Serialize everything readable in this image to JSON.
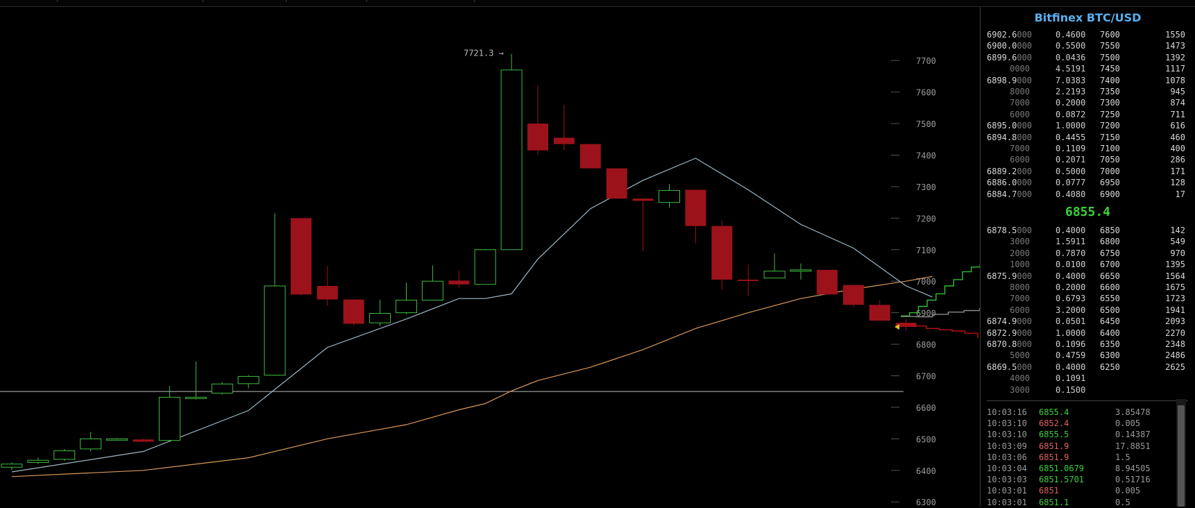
{
  "exchange_title": "Bitfinex BTC/USD",
  "chart_data": {
    "type": "candlestick",
    "y_ticks": [
      7700,
      7600,
      7500,
      7400,
      7300,
      7200,
      7100,
      7000,
      6900,
      6800,
      6700,
      6600,
      6500,
      6400,
      6300
    ],
    "ylim": [
      6285,
      7870
    ],
    "high_annotation": "7721.3 →",
    "horizontal_line_value": 6650,
    "candles": [
      {
        "o": 6410,
        "c": 6420,
        "h": 6425,
        "l": 6400,
        "bull": true
      },
      {
        "o": 6425,
        "c": 6432,
        "h": 6440,
        "l": 6420,
        "bull": true
      },
      {
        "o": 6435,
        "c": 6462,
        "h": 6468,
        "l": 6430,
        "bull": true
      },
      {
        "o": 6468,
        "c": 6500,
        "h": 6522,
        "l": 6460,
        "bull": true
      },
      {
        "o": 6500,
        "c": 6500,
        "h": 6502,
        "l": 6498,
        "bull": true
      },
      {
        "o": 6498,
        "c": 6491,
        "h": 6500,
        "l": 6490,
        "bull": false
      },
      {
        "o": 6495,
        "c": 6632,
        "h": 6668,
        "l": 6490,
        "bull": true
      },
      {
        "o": 6632,
        "c": 6632,
        "h": 6745,
        "l": 6625,
        "bull": true
      },
      {
        "o": 6645,
        "c": 6674,
        "h": 6680,
        "l": 6640,
        "bull": true
      },
      {
        "o": 6675,
        "c": 6698,
        "h": 6702,
        "l": 6660,
        "bull": true
      },
      {
        "o": 6702,
        "c": 6985,
        "h": 7215,
        "l": 6700,
        "bull": true
      },
      {
        "o": 7200,
        "c": 6958,
        "h": 7200,
        "l": 6955,
        "bull": false
      },
      {
        "o": 6985,
        "c": 6942,
        "h": 7048,
        "l": 6922,
        "bull": false
      },
      {
        "o": 6942,
        "c": 6865,
        "h": 6942,
        "l": 6858,
        "bull": false
      },
      {
        "o": 6868,
        "c": 6898,
        "h": 6942,
        "l": 6858,
        "bull": true
      },
      {
        "o": 6900,
        "c": 6940,
        "h": 6995,
        "l": 6895,
        "bull": true
      },
      {
        "o": 6940,
        "c": 7000,
        "h": 7050,
        "l": 6940,
        "bull": true
      },
      {
        "o": 7002,
        "c": 6990,
        "h": 7035,
        "l": 6978,
        "bull": false
      },
      {
        "o": 6990,
        "c": 7100,
        "h": 7102,
        "l": 6990,
        "bull": true
      },
      {
        "o": 7100,
        "c": 7670,
        "h": 7721,
        "l": 7100,
        "bull": true
      },
      {
        "o": 7500,
        "c": 7415,
        "h": 7620,
        "l": 7400,
        "bull": false
      },
      {
        "o": 7455,
        "c": 7435,
        "h": 7560,
        "l": 7415,
        "bull": false
      },
      {
        "o": 7435,
        "c": 7358,
        "h": 7435,
        "l": 7358,
        "bull": false
      },
      {
        "o": 7358,
        "c": 7262,
        "h": 7358,
        "l": 7262,
        "bull": false
      },
      {
        "o": 7262,
        "c": 7255,
        "h": 7262,
        "l": 7095,
        "bull": false
      },
      {
        "o": 7250,
        "c": 7288,
        "h": 7308,
        "l": 7233,
        "bull": true
      },
      {
        "o": 7290,
        "c": 7175,
        "h": 7290,
        "l": 7120,
        "bull": false
      },
      {
        "o": 7175,
        "c": 7005,
        "h": 7192,
        "l": 6973,
        "bull": false
      },
      {
        "o": 7005,
        "c": 7003,
        "h": 7053,
        "l": 6953,
        "bull": false
      },
      {
        "o": 7010,
        "c": 7032,
        "h": 7088,
        "l": 7010,
        "bull": true
      },
      {
        "o": 7032,
        "c": 7036,
        "h": 7056,
        "l": 7005,
        "bull": true
      },
      {
        "o": 7036,
        "c": 6958,
        "h": 7036,
        "l": 6958,
        "bull": false
      },
      {
        "o": 6988,
        "c": 6925,
        "h": 6988,
        "l": 6918,
        "bull": false
      },
      {
        "o": 6925,
        "c": 6875,
        "h": 6940,
        "l": 6875,
        "bull": false
      },
      {
        "o": 6868,
        "c": 6855,
        "h": 6880,
        "l": 6842,
        "bull": false
      }
    ],
    "ma_fast": [
      [
        0,
        6395
      ],
      [
        5,
        6460
      ],
      [
        9,
        6590
      ],
      [
        12,
        6790
      ],
      [
        15,
        6880
      ],
      [
        17,
        6945
      ],
      [
        18,
        6945
      ],
      [
        19,
        6960
      ],
      [
        20,
        7070
      ],
      [
        22,
        7230
      ],
      [
        24,
        7320
      ],
      [
        26,
        7390
      ],
      [
        28,
        7290
      ],
      [
        30,
        7180
      ],
      [
        32,
        7105
      ],
      [
        34,
        6985
      ],
      [
        35,
        6950
      ]
    ],
    "ma_slow": [
      [
        0,
        6380
      ],
      [
        5,
        6400
      ],
      [
        9,
        6440
      ],
      [
        12,
        6500
      ],
      [
        15,
        6545
      ],
      [
        17,
        6592
      ],
      [
        18,
        6612
      ],
      [
        19,
        6652
      ],
      [
        20,
        6685
      ],
      [
        22,
        6727
      ],
      [
        24,
        6783
      ],
      [
        26,
        6850
      ],
      [
        28,
        6900
      ],
      [
        30,
        6945
      ],
      [
        32,
        6975
      ],
      [
        34,
        7000
      ],
      [
        35,
        7015
      ]
    ],
    "depth_bids_line": [
      [
        0,
        6890
      ],
      [
        1,
        6900
      ],
      [
        2,
        6920
      ],
      [
        3,
        6940
      ],
      [
        4,
        6960
      ],
      [
        5,
        6985
      ],
      [
        6,
        7005
      ],
      [
        7,
        7030
      ],
      [
        8,
        7045
      ],
      [
        9,
        7055
      ]
    ],
    "depth_asks_line": [
      [
        0,
        6865
      ],
      [
        1,
        6858
      ],
      [
        2,
        6850
      ],
      [
        3,
        6846
      ],
      [
        4,
        6842
      ],
      [
        5,
        6835
      ],
      [
        6,
        6820
      ]
    ],
    "depth_mid_line": [
      [
        0,
        6888
      ],
      [
        1,
        6887
      ],
      [
        2,
        6895
      ],
      [
        3,
        6902
      ],
      [
        4,
        6907
      ],
      [
        5,
        6915
      ]
    ]
  },
  "asks": [
    {
      "price_hi": "6902.6",
      "price_lo": "000",
      "amount": "0.4600",
      "level": "7600",
      "sum": "1550"
    },
    {
      "price_hi": "6900.0",
      "price_lo": "000",
      "amount": "0.5500",
      "level": "7550",
      "sum": "1473"
    },
    {
      "price_hi": "6899.6",
      "price_lo": "000",
      "amount": "0.0436",
      "level": "7500",
      "sum": "1392"
    },
    {
      "price_hi": "",
      "price_lo": "0000",
      "amount": "4.5191",
      "level": "7450",
      "sum": "1117"
    },
    {
      "price_hi": "6898.9",
      "price_lo": "000",
      "amount": "7.0383",
      "level": "7400",
      "sum": "1078"
    },
    {
      "price_hi": "",
      "price_lo": "8000",
      "amount": "2.2193",
      "level": "7350",
      "sum": "945"
    },
    {
      "price_hi": "",
      "price_lo": "7000",
      "amount": "0.2000",
      "level": "7300",
      "sum": "874"
    },
    {
      "price_hi": "",
      "price_lo": "6000",
      "amount": "0.0872",
      "level": "7250",
      "sum": "711"
    },
    {
      "price_hi": "6895.0",
      "price_lo": "000",
      "amount": "1.0000",
      "level": "7200",
      "sum": "616"
    },
    {
      "price_hi": "6894.8",
      "price_lo": "000",
      "amount": "0.4455",
      "level": "7150",
      "sum": "460"
    },
    {
      "price_hi": "",
      "price_lo": "7000",
      "amount": "0.1109",
      "level": "7100",
      "sum": "400"
    },
    {
      "price_hi": "",
      "price_lo": "6000",
      "amount": "0.2071",
      "level": "7050",
      "sum": "286"
    },
    {
      "price_hi": "6889.2",
      "price_lo": "000",
      "amount": "0.5000",
      "level": "7000",
      "sum": "171"
    },
    {
      "price_hi": "6886.0",
      "price_lo": "000",
      "amount": "0.0777",
      "level": "6950",
      "sum": "128"
    },
    {
      "price_hi": "6884.7",
      "price_lo": "000",
      "amount": "0.4080",
      "level": "6900",
      "sum": "17"
    }
  ],
  "last_price": "6855.4",
  "bids": [
    {
      "price_hi": "6878.5",
      "price_lo": "000",
      "amount": "0.4000",
      "level": "6850",
      "sum": "142"
    },
    {
      "price_hi": "",
      "price_lo": "3000",
      "amount": "1.5911",
      "level": "6800",
      "sum": "549"
    },
    {
      "price_hi": "",
      "price_lo": "2000",
      "amount": "0.7870",
      "level": "6750",
      "sum": "970"
    },
    {
      "price_hi": "",
      "price_lo": "1000",
      "amount": "0.0100",
      "level": "6700",
      "sum": "1395"
    },
    {
      "price_hi": "6875.9",
      "price_lo": "000",
      "amount": "0.4000",
      "level": "6650",
      "sum": "1564"
    },
    {
      "price_hi": "",
      "price_lo": "8000",
      "amount": "0.2000",
      "level": "6600",
      "sum": "1675"
    },
    {
      "price_hi": "",
      "price_lo": "7000",
      "amount": "0.6793",
      "level": "6550",
      "sum": "1723"
    },
    {
      "price_hi": "",
      "price_lo": "6000",
      "amount": "3.2000",
      "level": "6500",
      "sum": "1941"
    },
    {
      "price_hi": "6874.9",
      "price_lo": "000",
      "amount": "0.0501",
      "level": "6450",
      "sum": "2093"
    },
    {
      "price_hi": "6872.9",
      "price_lo": "000",
      "amount": "1.0000",
      "level": "6400",
      "sum": "2270"
    },
    {
      "price_hi": "6870.8",
      "price_lo": "000",
      "amount": "0.1096",
      "level": "6350",
      "sum": "2348"
    },
    {
      "price_hi": "",
      "price_lo": "5000",
      "amount": "0.4759",
      "level": "6300",
      "sum": "2486"
    },
    {
      "price_hi": "6869.5",
      "price_lo": "000",
      "amount": "0.4000",
      "level": "6250",
      "sum": "2625"
    },
    {
      "price_hi": "",
      "price_lo": "4000",
      "amount": "0.1091",
      "level": "",
      "sum": ""
    },
    {
      "price_hi": "",
      "price_lo": "3000",
      "amount": "0.1500",
      "level": "",
      "sum": ""
    }
  ],
  "trades": [
    {
      "time": "10:03:16",
      "price": "6855.4",
      "amount": "3.85478",
      "side": "up"
    },
    {
      "time": "10:03:10",
      "price": "6852.4",
      "amount": "0.005",
      "side": "dn"
    },
    {
      "time": "10:03:10",
      "price": "6855.5",
      "amount": "0.14387",
      "side": "up"
    },
    {
      "time": "10:03:09",
      "price": "6851.9",
      "amount": "17.8851",
      "side": "dn"
    },
    {
      "time": "10:03:06",
      "price": "6851.9",
      "amount": "1.5",
      "side": "dn"
    },
    {
      "time": "10:03:04",
      "price": "6851.0679",
      "amount": "8.94505",
      "side": "up"
    },
    {
      "time": "10:03:03",
      "price": "6851.5701",
      "amount": "0.51716",
      "side": "up"
    },
    {
      "time": "10:03:01",
      "price": "6851",
      "amount": "0.005",
      "side": "dn"
    },
    {
      "time": "10:03:01",
      "price": "6851.1",
      "amount": "0.5",
      "side": "up"
    }
  ],
  "colors": {
    "bull": "#3fbf3f",
    "bear": "#9c121b",
    "ma_fast": "#9fb8c8",
    "ma_slow": "#d99a5a",
    "depth_bid": "#2fbf2f",
    "depth_ask": "#c01010",
    "depth_mid": "#8a8a8a",
    "title": "#59b0f0",
    "last_price": "#39d239"
  }
}
